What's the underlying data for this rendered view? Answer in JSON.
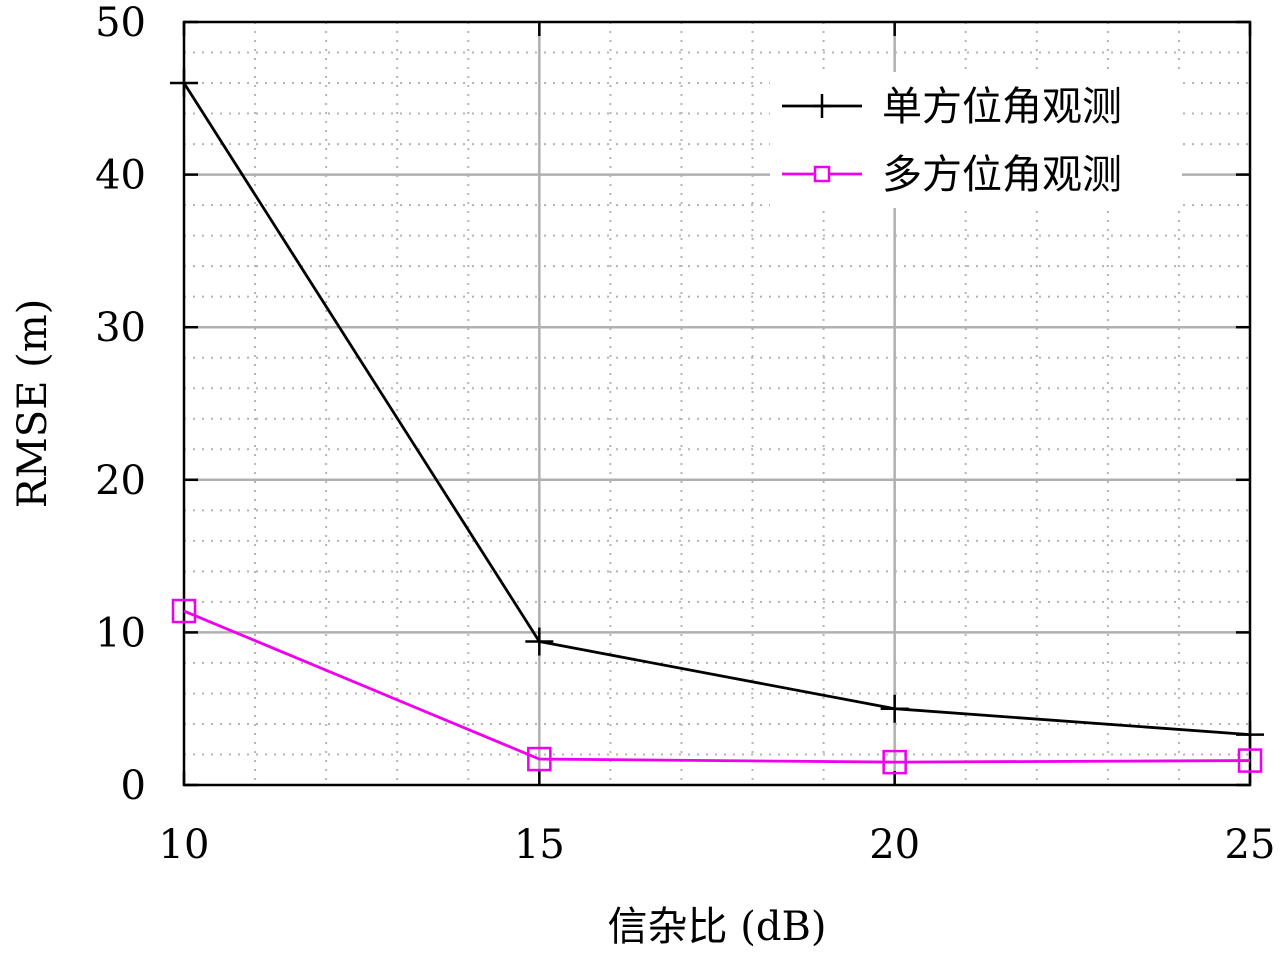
{
  "chart_data": {
    "type": "line",
    "x": [
      10,
      15,
      20,
      25
    ],
    "series": [
      {
        "name": "单方位角观测",
        "values": [
          46.0,
          9.4,
          5.0,
          3.3
        ],
        "color": "#000000",
        "marker": "plus"
      },
      {
        "name": "多方位角观测",
        "values": [
          11.4,
          1.7,
          1.5,
          1.6
        ],
        "color": "#ee00ee",
        "marker": "square"
      }
    ],
    "xlabel": "信杂比 (dB)",
    "ylabel": "RMSE (m)",
    "xlim": [
      10,
      25
    ],
    "ylim": [
      0,
      50
    ],
    "xticks": [
      10,
      15,
      20,
      25
    ],
    "yticks": [
      0,
      10,
      20,
      30,
      40,
      50
    ],
    "grid": true,
    "minor_grid": true,
    "legend_position": "top-right"
  }
}
